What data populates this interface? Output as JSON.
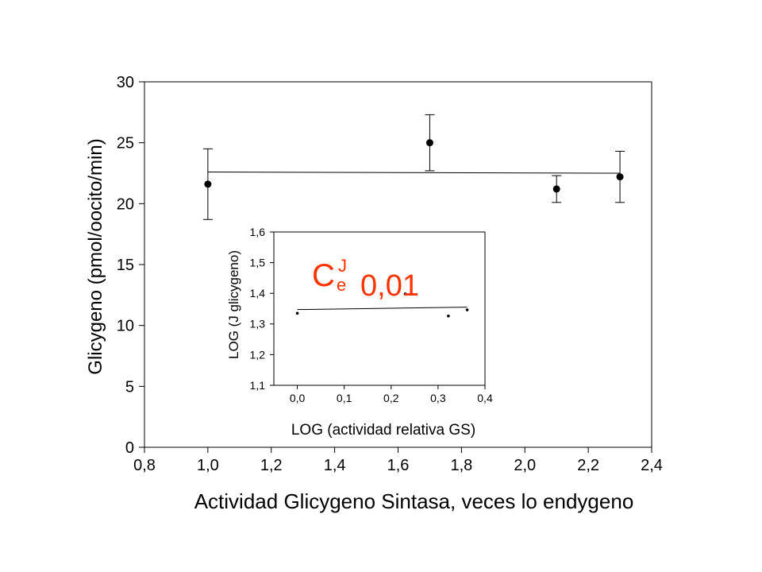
{
  "chart_data": [
    {
      "type": "scatter",
      "title": "",
      "xlabel": "Actividad Glicygeno Sintasa, veces lo endygeno",
      "ylabel": "Glicygeno (pmol/oocito/min)",
      "xlim": [
        0.8,
        2.4
      ],
      "ylim": [
        0,
        30
      ],
      "xticks": [
        "0,8",
        "1,0",
        "1,2",
        "1,4",
        "1,6",
        "1,8",
        "2,0",
        "2,2",
        "2,4"
      ],
      "yticks": [
        "0",
        "5",
        "10",
        "15",
        "20",
        "25",
        "30"
      ],
      "points": [
        {
          "x": 1.0,
          "y": 21.6,
          "err_low": 18.7,
          "err_high": 24.5
        },
        {
          "x": 1.7,
          "y": 25.0,
          "err_low": 22.7,
          "err_high": 27.3
        },
        {
          "x": 2.1,
          "y": 21.2,
          "err_low": 20.1,
          "err_high": 22.3
        },
        {
          "x": 2.3,
          "y": 22.2,
          "err_low": 20.1,
          "err_high": 24.3
        }
      ],
      "fit_line": {
        "x": [
          1.0,
          2.3
        ],
        "y": [
          22.6,
          22.5
        ]
      },
      "grid": false,
      "legend": "none"
    },
    {
      "type": "scatter",
      "title": "",
      "xlabel": "LOG (actividad relativa GS)",
      "ylabel": "LOG (J glicygeno)",
      "xlim": [
        -0.05,
        0.4
      ],
      "ylim": [
        1.1,
        1.6
      ],
      "xticks": [
        "0,0",
        "0,1",
        "0,2",
        "0,3",
        "0,4"
      ],
      "yticks": [
        "1,1",
        "1,2",
        "1,3",
        "1,4",
        "1,5",
        "1,6"
      ],
      "points": [
        {
          "x": 0.0,
          "y": 1.335
        },
        {
          "x": 0.23,
          "y": 1.398
        },
        {
          "x": 0.322,
          "y": 1.326
        },
        {
          "x": 0.362,
          "y": 1.346
        }
      ],
      "fit_line": {
        "x": [
          0.0,
          0.362
        ],
        "y": [
          1.347,
          1.355
        ]
      },
      "annotation": {
        "symbol": "C",
        "superscript": "J",
        "subscript": "e",
        "value": "0,01",
        "color": "#ff3300"
      }
    }
  ]
}
